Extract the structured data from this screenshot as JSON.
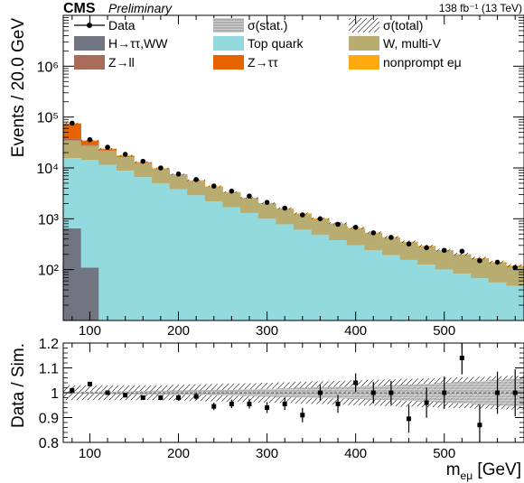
{
  "header": {
    "experiment": "CMS",
    "status": "Preliminary",
    "lumi": "138 fb⁻¹ (13 TeV)"
  },
  "legend": {
    "items": [
      {
        "label": "Data",
        "kind": "data"
      },
      {
        "label": "σ(stat.)",
        "kind": "hatch-horizontal"
      },
      {
        "label": "σ(total)",
        "kind": "hatch-diagonal"
      },
      {
        "label": "H→ττ,WW",
        "kind": "fill",
        "color": "#717581"
      },
      {
        "label": "Top quark",
        "kind": "fill",
        "color": "#92dadd"
      },
      {
        "label": "W, multi-V",
        "kind": "fill",
        "color": "#b9ac70"
      },
      {
        "label": "Z→ll",
        "kind": "fill",
        "color": "#a96b59"
      },
      {
        "label": "Z→ττ",
        "kind": "fill",
        "color": "#e76300"
      },
      {
        "label": "nonprompt eμ",
        "kind": "fill",
        "color": "#ffa90e"
      }
    ]
  },
  "colors": {
    "higgs": "#717581",
    "top": "#92dadd",
    "wmultiv": "#b9ac70",
    "zll": "#a96b59",
    "ztautau": "#e76300",
    "nonprompt": "#ffa90e"
  },
  "chart_data": {
    "type": "bar",
    "xlabel": "m_eμ [GeV]",
    "ylabel_top": "Events / 20.0 GeV",
    "ylabel_bottom": "Data / Sim.",
    "x_range": [
      70,
      590
    ],
    "x_ticks": [
      100,
      200,
      300,
      400,
      500
    ],
    "top_y_range": [
      10,
      10000000
    ],
    "top_y_scale": "log",
    "top_y_ticks": [
      {
        "value": 100,
        "label": "10²"
      },
      {
        "value": 1000,
        "label": "10³"
      },
      {
        "value": 10000,
        "label": "10⁴"
      },
      {
        "value": 100000,
        "label": "10⁵"
      },
      {
        "value": 1000000,
        "label": "10⁶"
      }
    ],
    "ratio_y_range": [
      0.8,
      1.2
    ],
    "ratio_y_ticks": [
      {
        "value": 0.8,
        "label": "0.8"
      },
      {
        "value": 0.9,
        "label": "0.9"
      },
      {
        "value": 1.0,
        "label": "1"
      },
      {
        "value": 1.1,
        "label": "1.1"
      },
      {
        "value": 1.2,
        "label": "1.2"
      }
    ],
    "bin_edges": [
      70,
      90,
      110,
      130,
      150,
      170,
      190,
      210,
      230,
      250,
      270,
      290,
      310,
      330,
      350,
      370,
      390,
      410,
      430,
      450,
      470,
      490,
      510,
      530,
      550,
      570,
      590
    ],
    "stack": [
      {
        "name": "H→ττ,WW",
        "color": "#717581",
        "values": [
          650,
          110,
          0,
          0,
          0,
          0,
          0,
          0,
          0,
          0,
          0,
          0,
          0,
          0,
          0,
          0,
          0,
          0,
          0,
          0,
          0,
          0,
          0,
          0,
          0,
          0
        ]
      },
      {
        "name": "Top quark",
        "color": "#92dadd",
        "values": [
          15000,
          14200,
          11500,
          8800,
          6600,
          5000,
          3800,
          2900,
          2200,
          1680,
          1300,
          1000,
          780,
          610,
          480,
          380,
          300,
          240,
          192,
          155,
          125,
          101,
          83,
          68,
          56,
          48
        ]
      },
      {
        "name": "W, multi-V",
        "color": "#b9ac70",
        "values": [
          19000,
          13000,
          10000,
          7600,
          5800,
          4400,
          3400,
          2600,
          2000,
          1550,
          1200,
          960,
          770,
          620,
          500,
          410,
          340,
          280,
          230,
          190,
          160,
          134,
          113,
          96,
          80,
          68
        ]
      },
      {
        "name": "Z→ll",
        "color": "#a96b59",
        "values": [
          3000,
          1200,
          500,
          260,
          150,
          90,
          60,
          40,
          28,
          20,
          14,
          10,
          8,
          6,
          5,
          4,
          3,
          2,
          2,
          1,
          1,
          1,
          1,
          1,
          1,
          1
        ]
      },
      {
        "name": "Z→ττ",
        "color": "#e76300",
        "values": [
          37000,
          5500,
          1500,
          550,
          250,
          130,
          75,
          45,
          30,
          20,
          14,
          10,
          7,
          5,
          4,
          3,
          2,
          2,
          1,
          1,
          1,
          1,
          1,
          1,
          1,
          1
        ]
      },
      {
        "name": "nonprompt eμ",
        "color": "#ffa90e",
        "values": [
          1000,
          700,
          500,
          380,
          290,
          220,
          170,
          130,
          100,
          80,
          60,
          48,
          38,
          30,
          24,
          19,
          15,
          12,
          10,
          8,
          6,
          5,
          4,
          3,
          3,
          2
        ]
      }
    ],
    "data": {
      "x": [
        80,
        100,
        120,
        140,
        160,
        180,
        200,
        220,
        240,
        260,
        280,
        300,
        320,
        340,
        360,
        380,
        400,
        420,
        440,
        460,
        480,
        500,
        520,
        540,
        560,
        580
      ],
      "y": [
        76000,
        36000,
        25500,
        18500,
        13500,
        10000,
        7600,
        5900,
        4400,
        3500,
        2800,
        2100,
        1620,
        1190,
        1000,
        780,
        680,
        530,
        430,
        320,
        270,
        240,
        230,
        150,
        140,
        110
      ]
    },
    "ratio": {
      "x": [
        80,
        100,
        120,
        140,
        160,
        180,
        200,
        220,
        240,
        260,
        280,
        300,
        320,
        340,
        360,
        380,
        400,
        420,
        440,
        460,
        480,
        500,
        520,
        540,
        560,
        580
      ],
      "y": [
        1.01,
        1.035,
        1.0,
        0.99,
        0.98,
        0.98,
        0.98,
        0.985,
        0.945,
        0.955,
        0.955,
        0.94,
        0.955,
        0.91,
        1.0,
        0.955,
        1.04,
        1.0,
        1.0,
        0.895,
        0.96,
        1.0,
        1.14,
        0.87,
        1.0,
        1.0
      ],
      "err": [
        0.005,
        0.006,
        0.007,
        0.008,
        0.009,
        0.01,
        0.012,
        0.013,
        0.015,
        0.017,
        0.019,
        0.022,
        0.025,
        0.029,
        0.032,
        0.036,
        0.038,
        0.043,
        0.048,
        0.056,
        0.061,
        0.065,
        0.066,
        0.082,
        0.085,
        0.095
      ],
      "total_band": [
        0.03,
        0.03,
        0.03,
        0.03,
        0.03,
        0.03,
        0.032,
        0.034,
        0.035,
        0.037,
        0.038,
        0.04,
        0.042,
        0.044,
        0.046,
        0.048,
        0.05,
        0.052,
        0.054,
        0.056,
        0.058,
        0.06,
        0.062,
        0.064,
        0.066,
        0.068
      ],
      "stat_band": [
        0.003,
        0.004,
        0.005,
        0.006,
        0.007,
        0.008,
        0.009,
        0.01,
        0.011,
        0.012,
        0.014,
        0.016,
        0.018,
        0.02,
        0.022,
        0.024,
        0.026,
        0.028,
        0.03,
        0.033,
        0.036,
        0.04,
        0.044,
        0.048,
        0.052,
        0.056
      ]
    }
  }
}
